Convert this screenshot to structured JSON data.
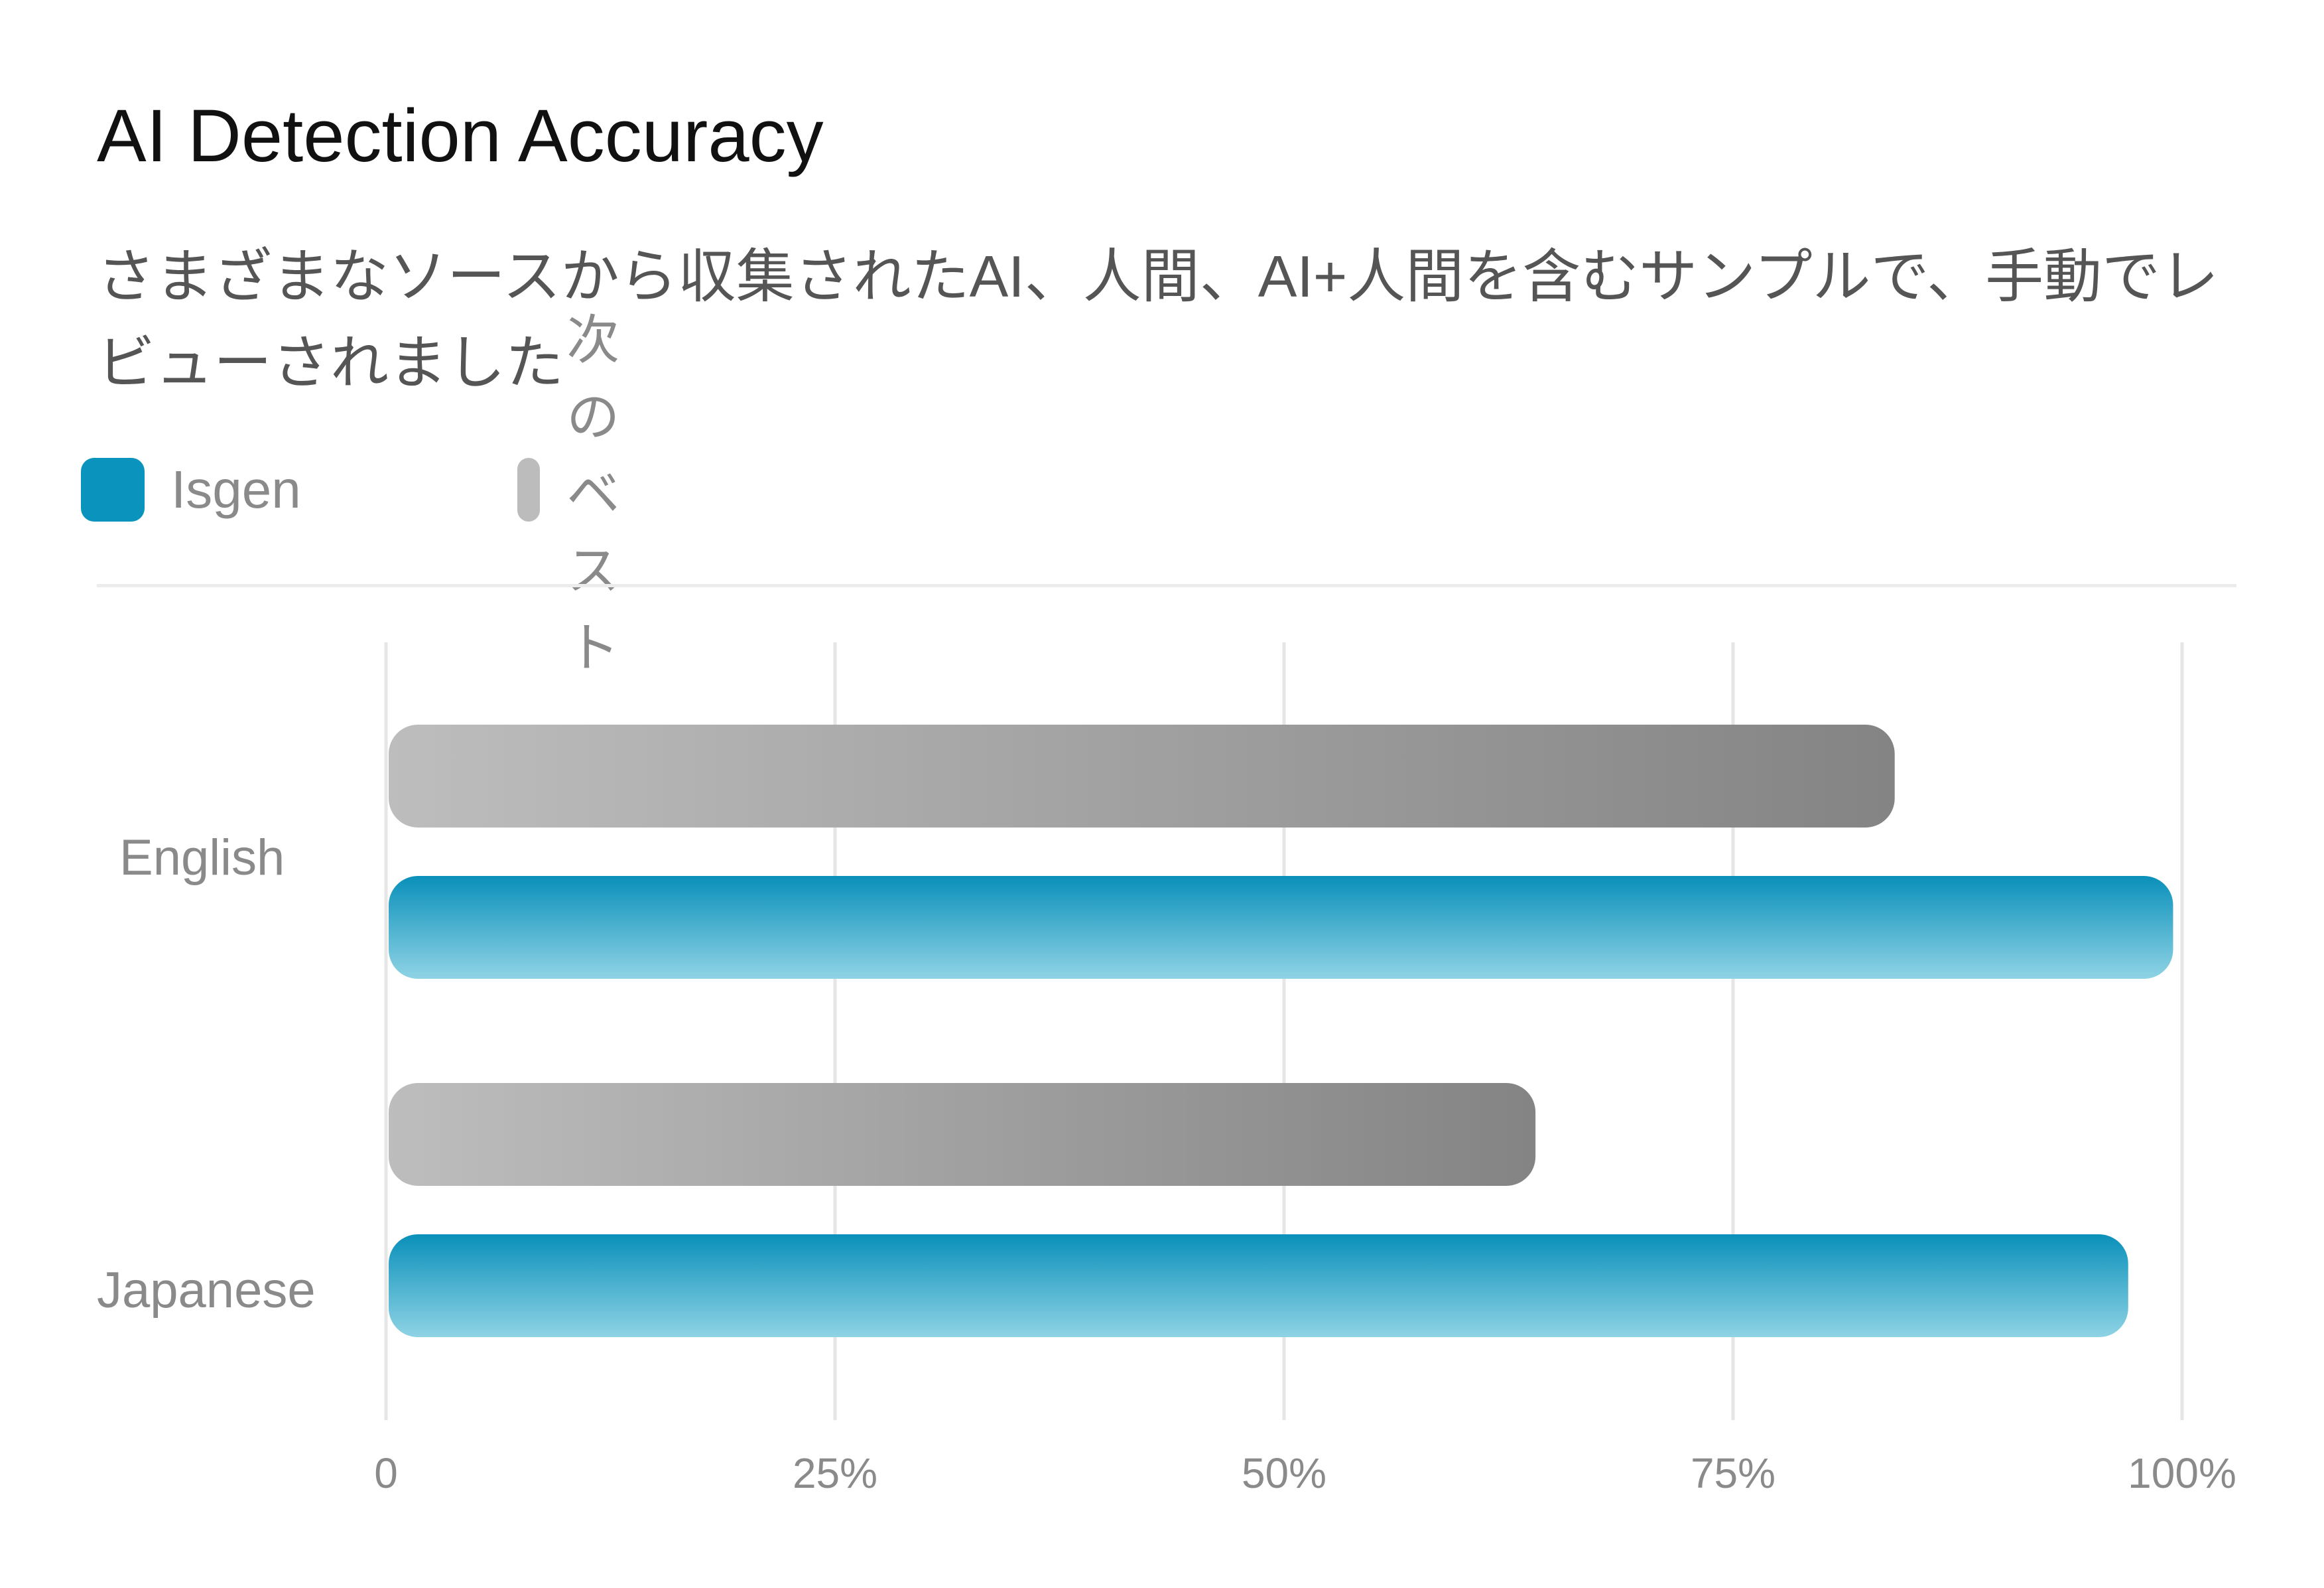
{
  "chart_data": {
    "type": "bar",
    "orientation": "horizontal",
    "title": "AI Detection Accuracy",
    "subtitle": "さまざまなソースから収集されたAI、人間、AI+人間を含むサンプルで、手動でレビューされました",
    "categories": [
      "English",
      "Japanese"
    ],
    "series": [
      {
        "name": "次のベスト",
        "values": [
          84,
          64
        ],
        "color": "#9e9e9e"
      },
      {
        "name": "Isgen",
        "values": [
          99.5,
          97
        ],
        "color": "#0a94bd"
      }
    ],
    "xlim": [
      0,
      100
    ],
    "x_ticks": [
      {
        "value": 0,
        "label": "0"
      },
      {
        "value": 25,
        "label": "25%"
      },
      {
        "value": 50,
        "label": "50%"
      },
      {
        "value": 75,
        "label": "75%"
      },
      {
        "value": 100,
        "label": "100%"
      }
    ],
    "grid": true,
    "legend_position": "top-left"
  }
}
